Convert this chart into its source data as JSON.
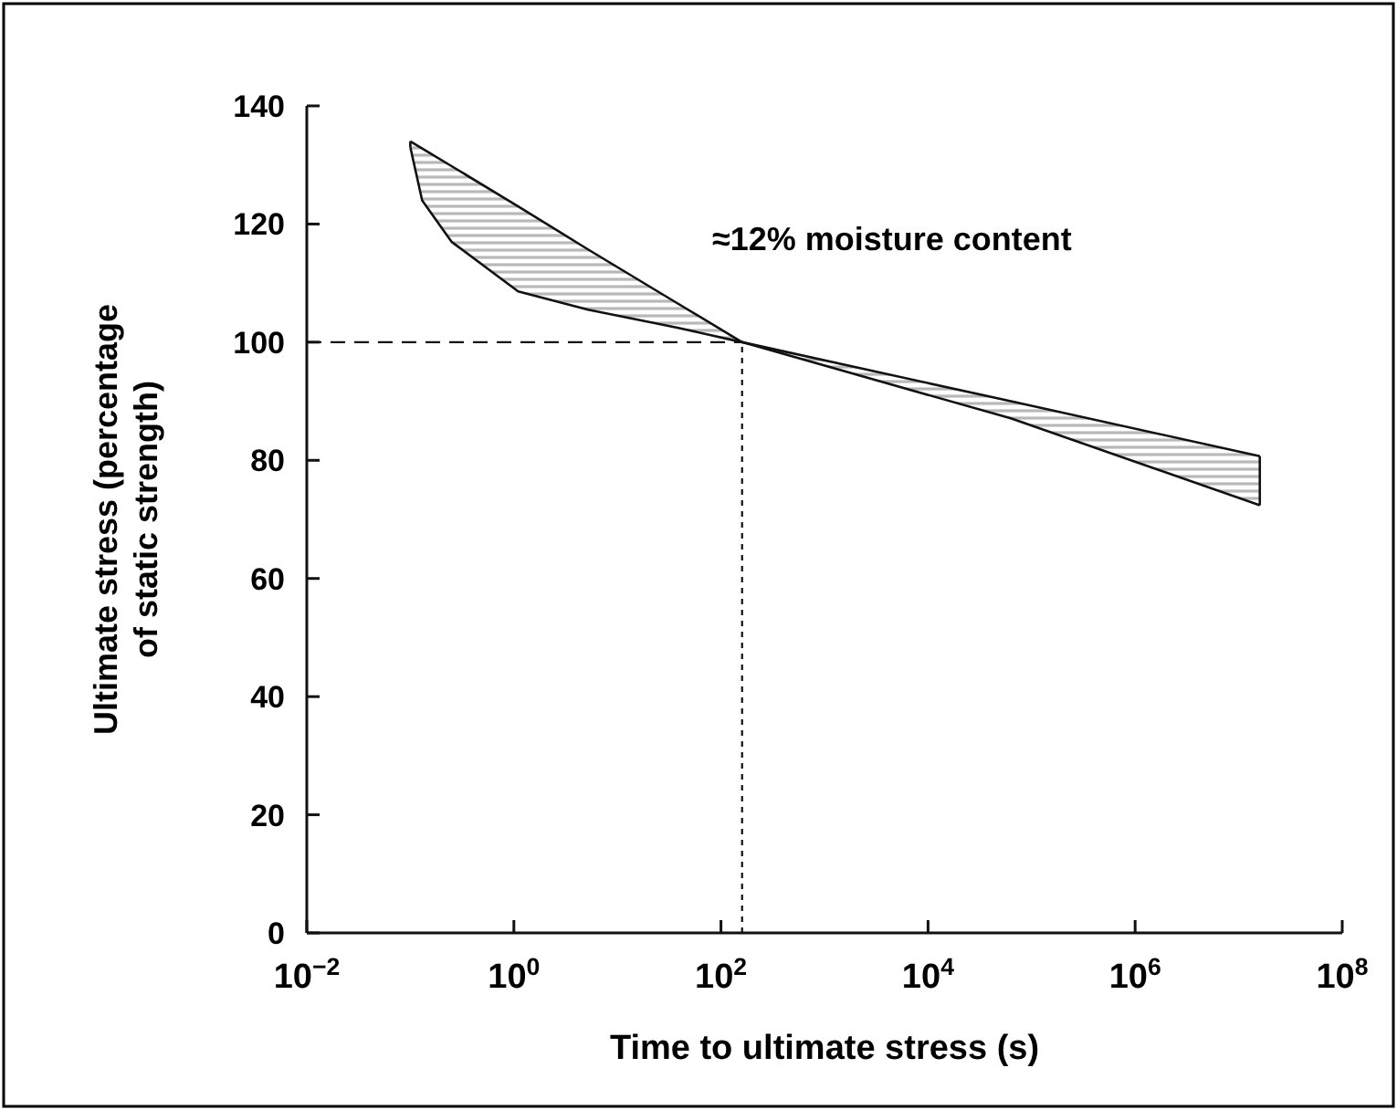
{
  "chart_data": {
    "type": "line",
    "xlabel": "Time to ultimate stress (s)",
    "ylabel": "Ultimate stress (percentage\nof static strength)",
    "annotations": [
      "≈12% moisture content"
    ],
    "log": "x",
    "grid": false,
    "marker": "none",
    "xlim": [
      0.01,
      100000000
    ],
    "xticks": [
      {
        "value": 0.01,
        "label": "10$^{−2}$"
      },
      {
        "value": 1,
        "label": "10$^{0}$"
      },
      {
        "value": 100,
        "label": "10$^{2}$"
      },
      {
        "value": 10000,
        "label": "10$^{4}$"
      },
      {
        "value": 1000000,
        "label": "10$^{6}$"
      },
      {
        "value": 100000000,
        "label": "10$^{8}$"
      }
    ],
    "ylim": [
      0,
      140
    ],
    "yticks": [
      0,
      20,
      40,
      60,
      80,
      100,
      120,
      140
    ],
    "series": [
      {
        "color": "#111111",
        "x": [
          0.1,
          0.13,
          0.25,
          1.1,
          5.2,
          37,
          160,
          63000,
          16000000
        ],
        "values": [
          134,
          132.8,
          129.8,
          123,
          115.7,
          106.7,
          100,
          90,
          80.7
        ]
      },
      {
        "color": "#111111",
        "x": [
          0.1,
          0.13,
          0.25,
          1.1,
          5.2,
          37,
          160,
          63000,
          16000000
        ],
        "values": [
          133,
          124,
          117,
          108.6,
          105.5,
          102.5,
          100,
          87.1,
          72.4
        ]
      }
    ],
    "ref_lines": [
      {
        "axis": "y",
        "value": 100,
        "line_style": "dashed"
      },
      {
        "axis": "x",
        "value": 160,
        "line_style": "dotted"
      }
    ]
  }
}
